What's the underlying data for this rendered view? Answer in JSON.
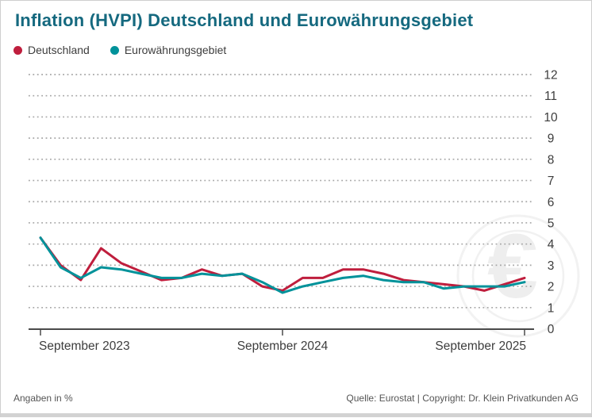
{
  "title": "Inflation (HVPI) Deutschland und Eurowährungsgebiet",
  "legend": [
    {
      "label": "Deutschland",
      "color": "#bf1e3d"
    },
    {
      "label": "Eurowährungsgebiet",
      "color": "#00929a"
    }
  ],
  "footer": {
    "left": "Angaben in %",
    "right": "Quelle: Eurostat | Copyright: Dr. Klein Privatkunden AG"
  },
  "colors": {
    "title": "#15697f",
    "axis": "#4a4a4a",
    "grid": "#a6a6a6",
    "tick_text": "#3d3d3d",
    "watermark": "#eeeeee"
  },
  "watermark": {
    "symbol": "€"
  },
  "chart_data": {
    "type": "line",
    "title": "Inflation (HVPI) Deutschland und Eurowährungsgebiet",
    "unit": "%",
    "x": [
      "2023-09",
      "2023-10",
      "2023-11",
      "2023-12",
      "2024-01",
      "2024-02",
      "2024-03",
      "2024-04",
      "2024-05",
      "2024-06",
      "2024-07",
      "2024-08",
      "2024-09",
      "2024-10",
      "2024-11",
      "2024-12",
      "2025-01",
      "2025-02",
      "2025-03",
      "2025-04",
      "2025-05",
      "2025-06",
      "2025-07",
      "2025-08",
      "2025-09"
    ],
    "series": [
      {
        "name": "Deutschland",
        "color": "#bf1e3d",
        "values": [
          4.3,
          3.0,
          2.3,
          3.8,
          3.1,
          2.7,
          2.3,
          2.4,
          2.8,
          2.5,
          2.6,
          2.0,
          1.8,
          2.4,
          2.4,
          2.8,
          2.8,
          2.6,
          2.3,
          2.2,
          2.1,
          2.0,
          1.8,
          2.1,
          2.4
        ]
      },
      {
        "name": "Eurowährungsgebiet",
        "color": "#00929a",
        "values": [
          4.3,
          2.9,
          2.4,
          2.9,
          2.8,
          2.6,
          2.4,
          2.4,
          2.6,
          2.5,
          2.6,
          2.2,
          1.7,
          2.0,
          2.2,
          2.4,
          2.5,
          2.3,
          2.2,
          2.2,
          1.9,
          2.0,
          2.0,
          2.0,
          2.2
        ]
      }
    ],
    "xtick_labels": [
      "September 2023",
      "September 2024",
      "September 2025"
    ],
    "xtick_indices": [
      0,
      12,
      24
    ],
    "yticks": [
      0,
      1,
      2,
      3,
      4,
      5,
      6,
      7,
      8,
      9,
      10,
      11,
      12
    ],
    "ylim": [
      0,
      12
    ],
    "grid": "dotted horizontal",
    "ylabel_side": "right",
    "legend_position": "top-left"
  }
}
